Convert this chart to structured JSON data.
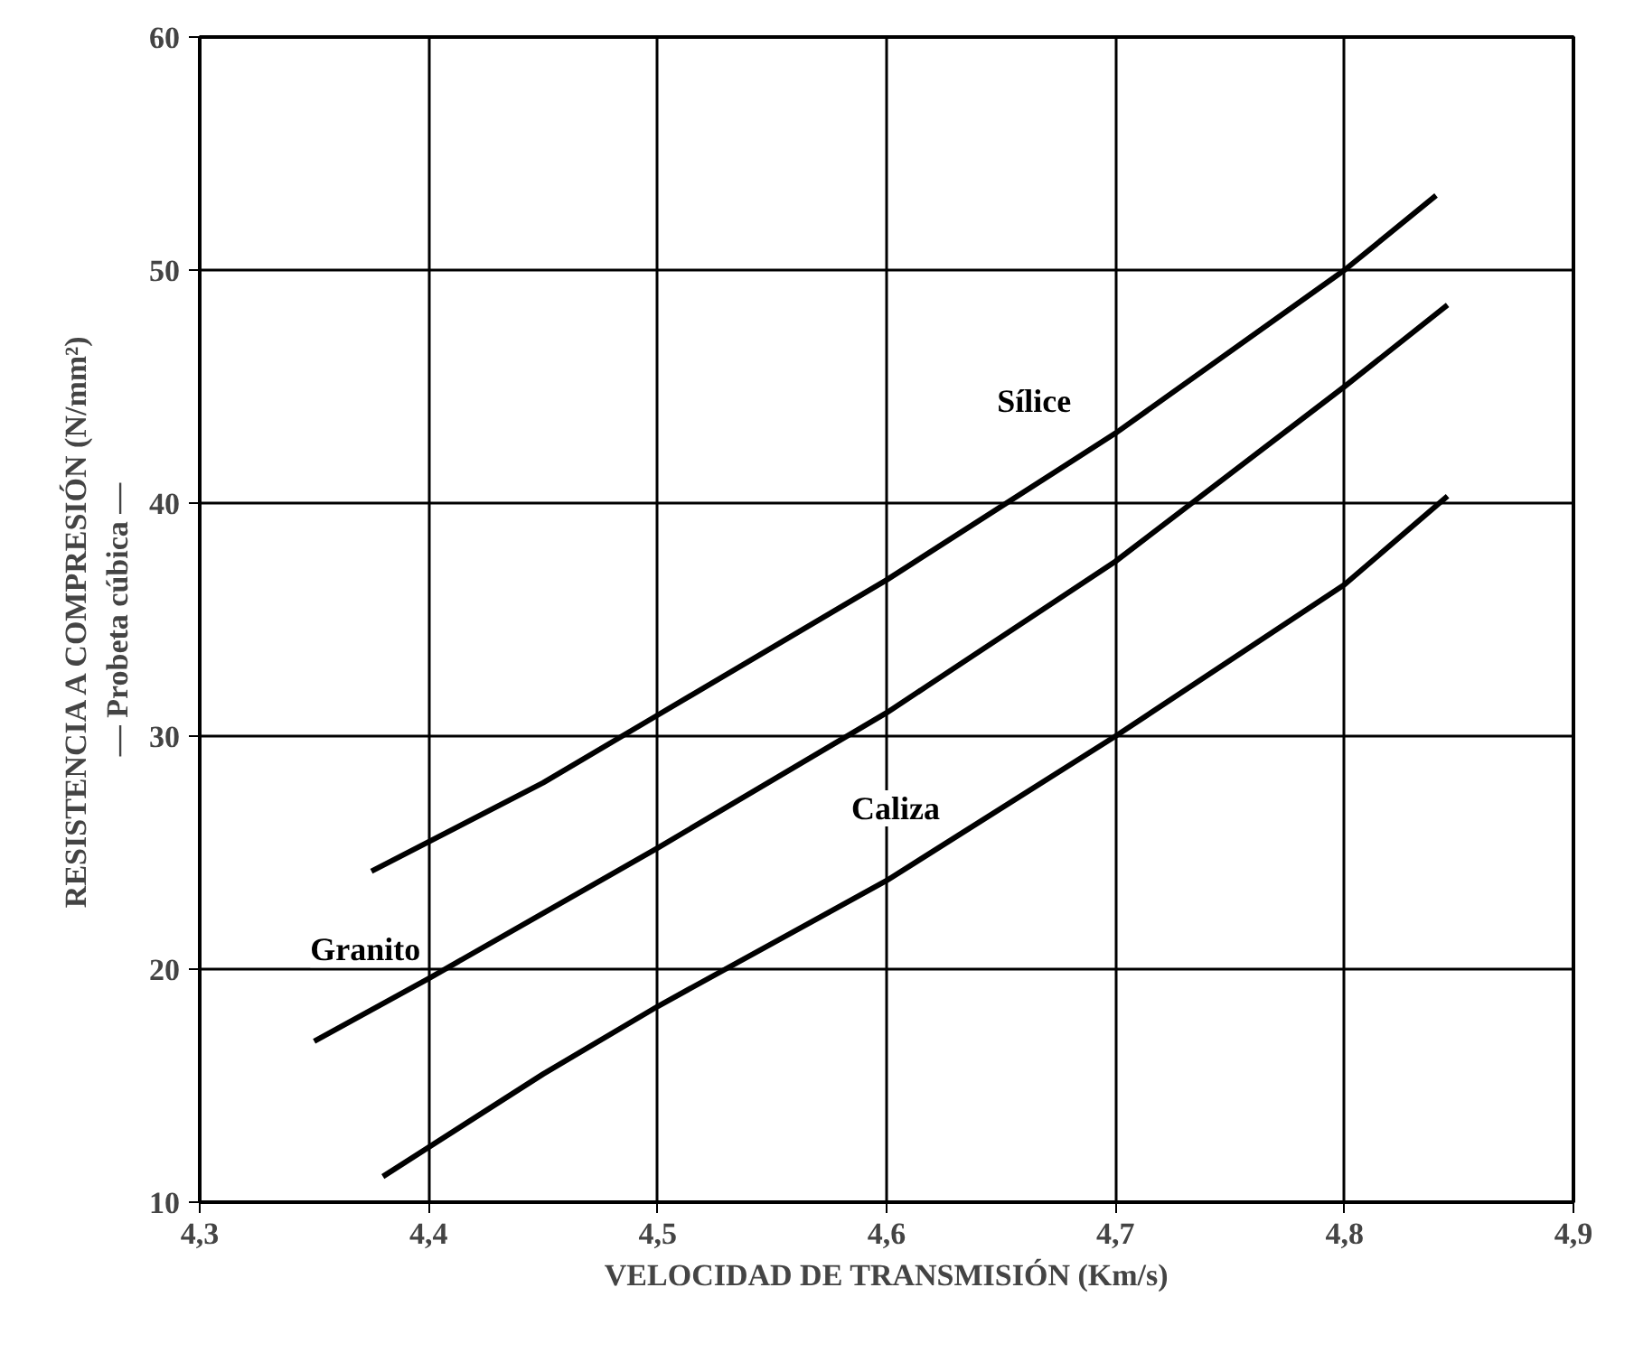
{
  "chart_data": {
    "type": "line",
    "xlabel": "VELOCIDAD DE TRANSMISIÓN (Km/s)",
    "ylabel": "RESISTENCIA A COMPRESIÓN (N/mm²)\n— Probeta cúbica —",
    "series": [
      {
        "name": "Sílice",
        "color": "#000000",
        "x": [
          4.375,
          4.45,
          4.5,
          4.6,
          4.7,
          4.8,
          4.84
        ],
        "values": [
          24.2,
          28.0,
          30.9,
          36.7,
          43.0,
          50.0,
          53.2
        ]
      },
      {
        "name": "Granito",
        "color": "#000000",
        "x": [
          4.35,
          4.4,
          4.5,
          4.6,
          4.7,
          4.8,
          4.845
        ],
        "values": [
          16.9,
          19.6,
          25.2,
          31.0,
          37.5,
          45.0,
          48.5
        ]
      },
      {
        "name": "Caliza",
        "color": "#000000",
        "x": [
          4.38,
          4.45,
          4.5,
          4.6,
          4.7,
          4.8,
          4.845
        ],
        "values": [
          11.1,
          15.5,
          18.4,
          23.8,
          30.0,
          36.5,
          40.3
        ]
      }
    ],
    "xlim": [
      4.3,
      4.9
    ],
    "ylim": [
      10,
      60
    ],
    "xticks": [
      {
        "value": 4.3,
        "label": "4,3"
      },
      {
        "value": 4.4,
        "label": "4,4"
      },
      {
        "value": 4.5,
        "label": "4,5"
      },
      {
        "value": 4.6,
        "label": "4,6"
      },
      {
        "value": 4.7,
        "label": "4,7"
      },
      {
        "value": 4.8,
        "label": "4,8"
      },
      {
        "value": 4.9,
        "label": "4,9"
      }
    ],
    "yticks": [
      10,
      20,
      30,
      40,
      50,
      60
    ],
    "grid": true,
    "line_style": "solid",
    "marker": "none"
  }
}
